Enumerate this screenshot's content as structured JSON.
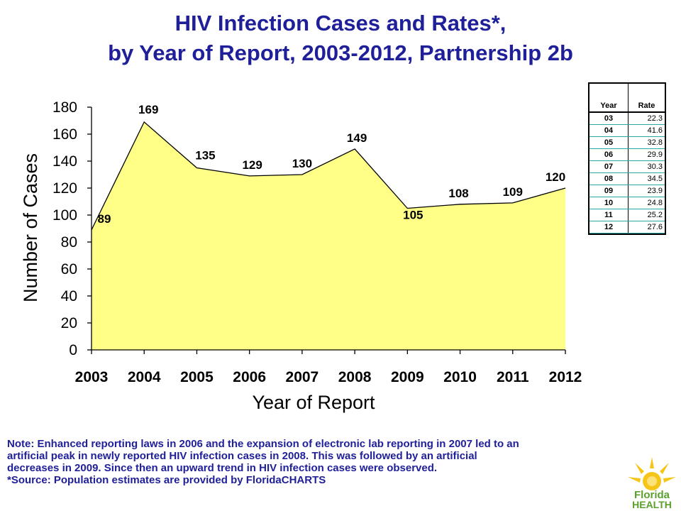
{
  "title": {
    "line1": "HIV Infection Cases and Rates*,",
    "line2": "by Year of Report, 2003-2012, Partnership 2b"
  },
  "chart_data": {
    "type": "area",
    "categories": [
      "2003",
      "2004",
      "2005",
      "2006",
      "2007",
      "2008",
      "2009",
      "2010",
      "2011",
      "2012"
    ],
    "values": [
      89,
      169,
      135,
      129,
      130,
      149,
      105,
      108,
      109,
      120
    ],
    "xlabel": "Year of Report",
    "ylabel": "Number of Cases",
    "ylim": [
      0,
      180
    ],
    "yticks": [
      0,
      20,
      40,
      60,
      80,
      100,
      120,
      140,
      160,
      180
    ],
    "fill_color": "#ffff88",
    "line_color": "#000000",
    "grid": false,
    "legend": "none"
  },
  "rate_table": {
    "headers": {
      "year": "Year",
      "rate": "Rate"
    },
    "rows": [
      {
        "year": "03",
        "rate": "22.3"
      },
      {
        "year": "04",
        "rate": "41.6"
      },
      {
        "year": "05",
        "rate": "32.8"
      },
      {
        "year": "06",
        "rate": "29.9"
      },
      {
        "year": "07",
        "rate": "30.3"
      },
      {
        "year": "08",
        "rate": "34.5"
      },
      {
        "year": "09",
        "rate": "23.9"
      },
      {
        "year": "10",
        "rate": "24.8"
      },
      {
        "year": "11",
        "rate": "25.2"
      },
      {
        "year": "12",
        "rate": "27.6"
      }
    ]
  },
  "footnote": {
    "line1": "Note:  Enhanced reporting laws in 2006 and the expansion of electronic lab reporting in 2007 led to an",
    "line2": "artificial peak in newly reported HIV infection cases in 2008.  This was followed by an artificial",
    "line3": "decreases in 2009. Since then an upward trend in HIV infection cases were observed.",
    "line4": "*Source: Population estimates are provided by FloridaCHARTS"
  },
  "logo": {
    "line1": "Florida",
    "line2": "HEALTH"
  },
  "colors": {
    "title": "#1f1f99",
    "chart_fill": "#ffff88",
    "logo_sun": "#f5c518",
    "logo_text_green": "#5aa02c"
  }
}
